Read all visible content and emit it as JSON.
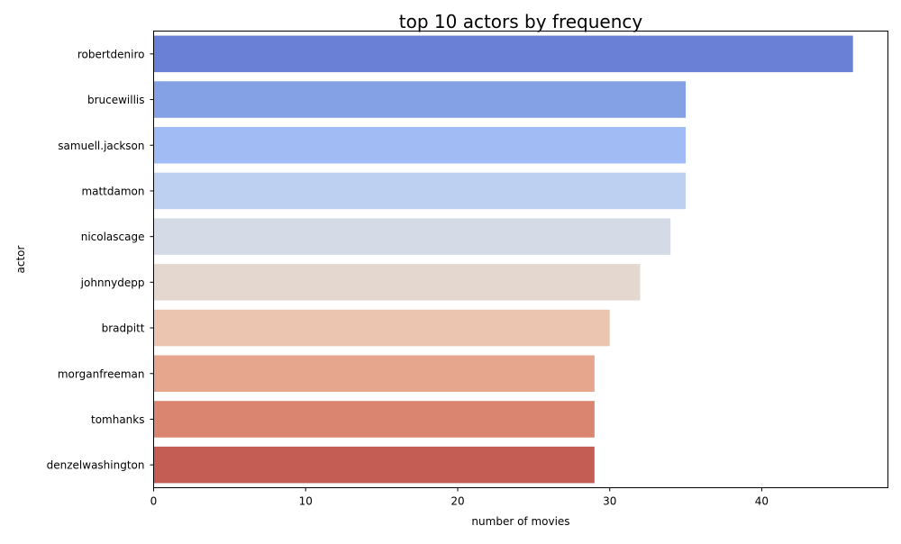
{
  "chart_data": {
    "type": "bar",
    "orientation": "horizontal",
    "title": "top 10 actors by frequency",
    "xlabel": "number of movies",
    "ylabel": "actor",
    "categories": [
      "robertdeniro",
      "brucewillis",
      "samuell.jackson",
      "mattdamon",
      "nicolascage",
      "johnnydepp",
      "bradpitt",
      "morganfreeman",
      "tomhanks",
      "denzelwashington"
    ],
    "values": [
      46,
      35,
      35,
      35,
      34,
      32,
      30,
      29,
      29,
      29
    ],
    "colors": [
      "#6a80d6",
      "#84a1e6",
      "#a1bbf4",
      "#bdd0f2",
      "#d5dbe6",
      "#e4d7cf",
      "#ecc5b0",
      "#e6a68d",
      "#d98570",
      "#c45e55"
    ],
    "xlim": [
      0,
      48.3
    ],
    "xticks": [
      0,
      10,
      20,
      30,
      40
    ],
    "grid": false,
    "legend": "none"
  }
}
